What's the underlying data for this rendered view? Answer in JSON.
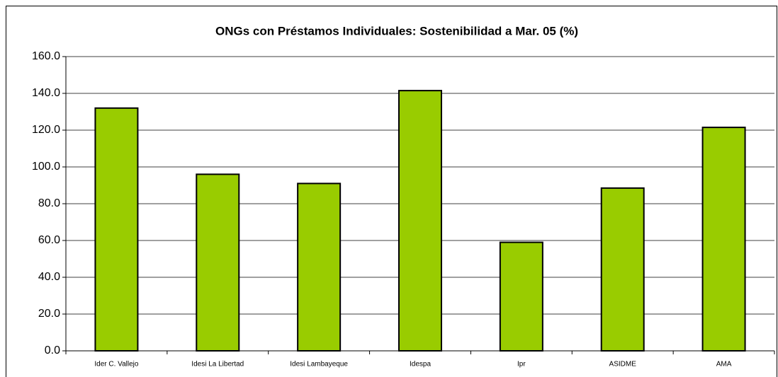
{
  "chart_data": {
    "type": "bar",
    "title": "ONGs con Préstamos Individuales: Sostenibilidad a Mar. 05 (%)",
    "categories": [
      "Ider C. Vallejo",
      "Idesi La Libertad",
      "Idesi Lambayeque",
      "Idespa",
      "Ipr",
      "ASIDME",
      "AMA"
    ],
    "values": [
      132,
      96,
      91,
      141.5,
      59,
      88.5,
      121.5
    ],
    "color": "#99cc00",
    "ylim": [
      0,
      160
    ],
    "yticks": [
      {
        "value": 0,
        "label": "0.0"
      },
      {
        "value": 20,
        "label": "20.0"
      },
      {
        "value": 40,
        "label": "40.0"
      },
      {
        "value": 60,
        "label": "60.0"
      },
      {
        "value": 80,
        "label": "80.0"
      },
      {
        "value": 100,
        "label": "100.0"
      },
      {
        "value": 120,
        "label": "120.0"
      },
      {
        "value": 140,
        "label": "140.0"
      },
      {
        "value": 160,
        "label": "160.0"
      }
    ],
    "grid": true
  }
}
